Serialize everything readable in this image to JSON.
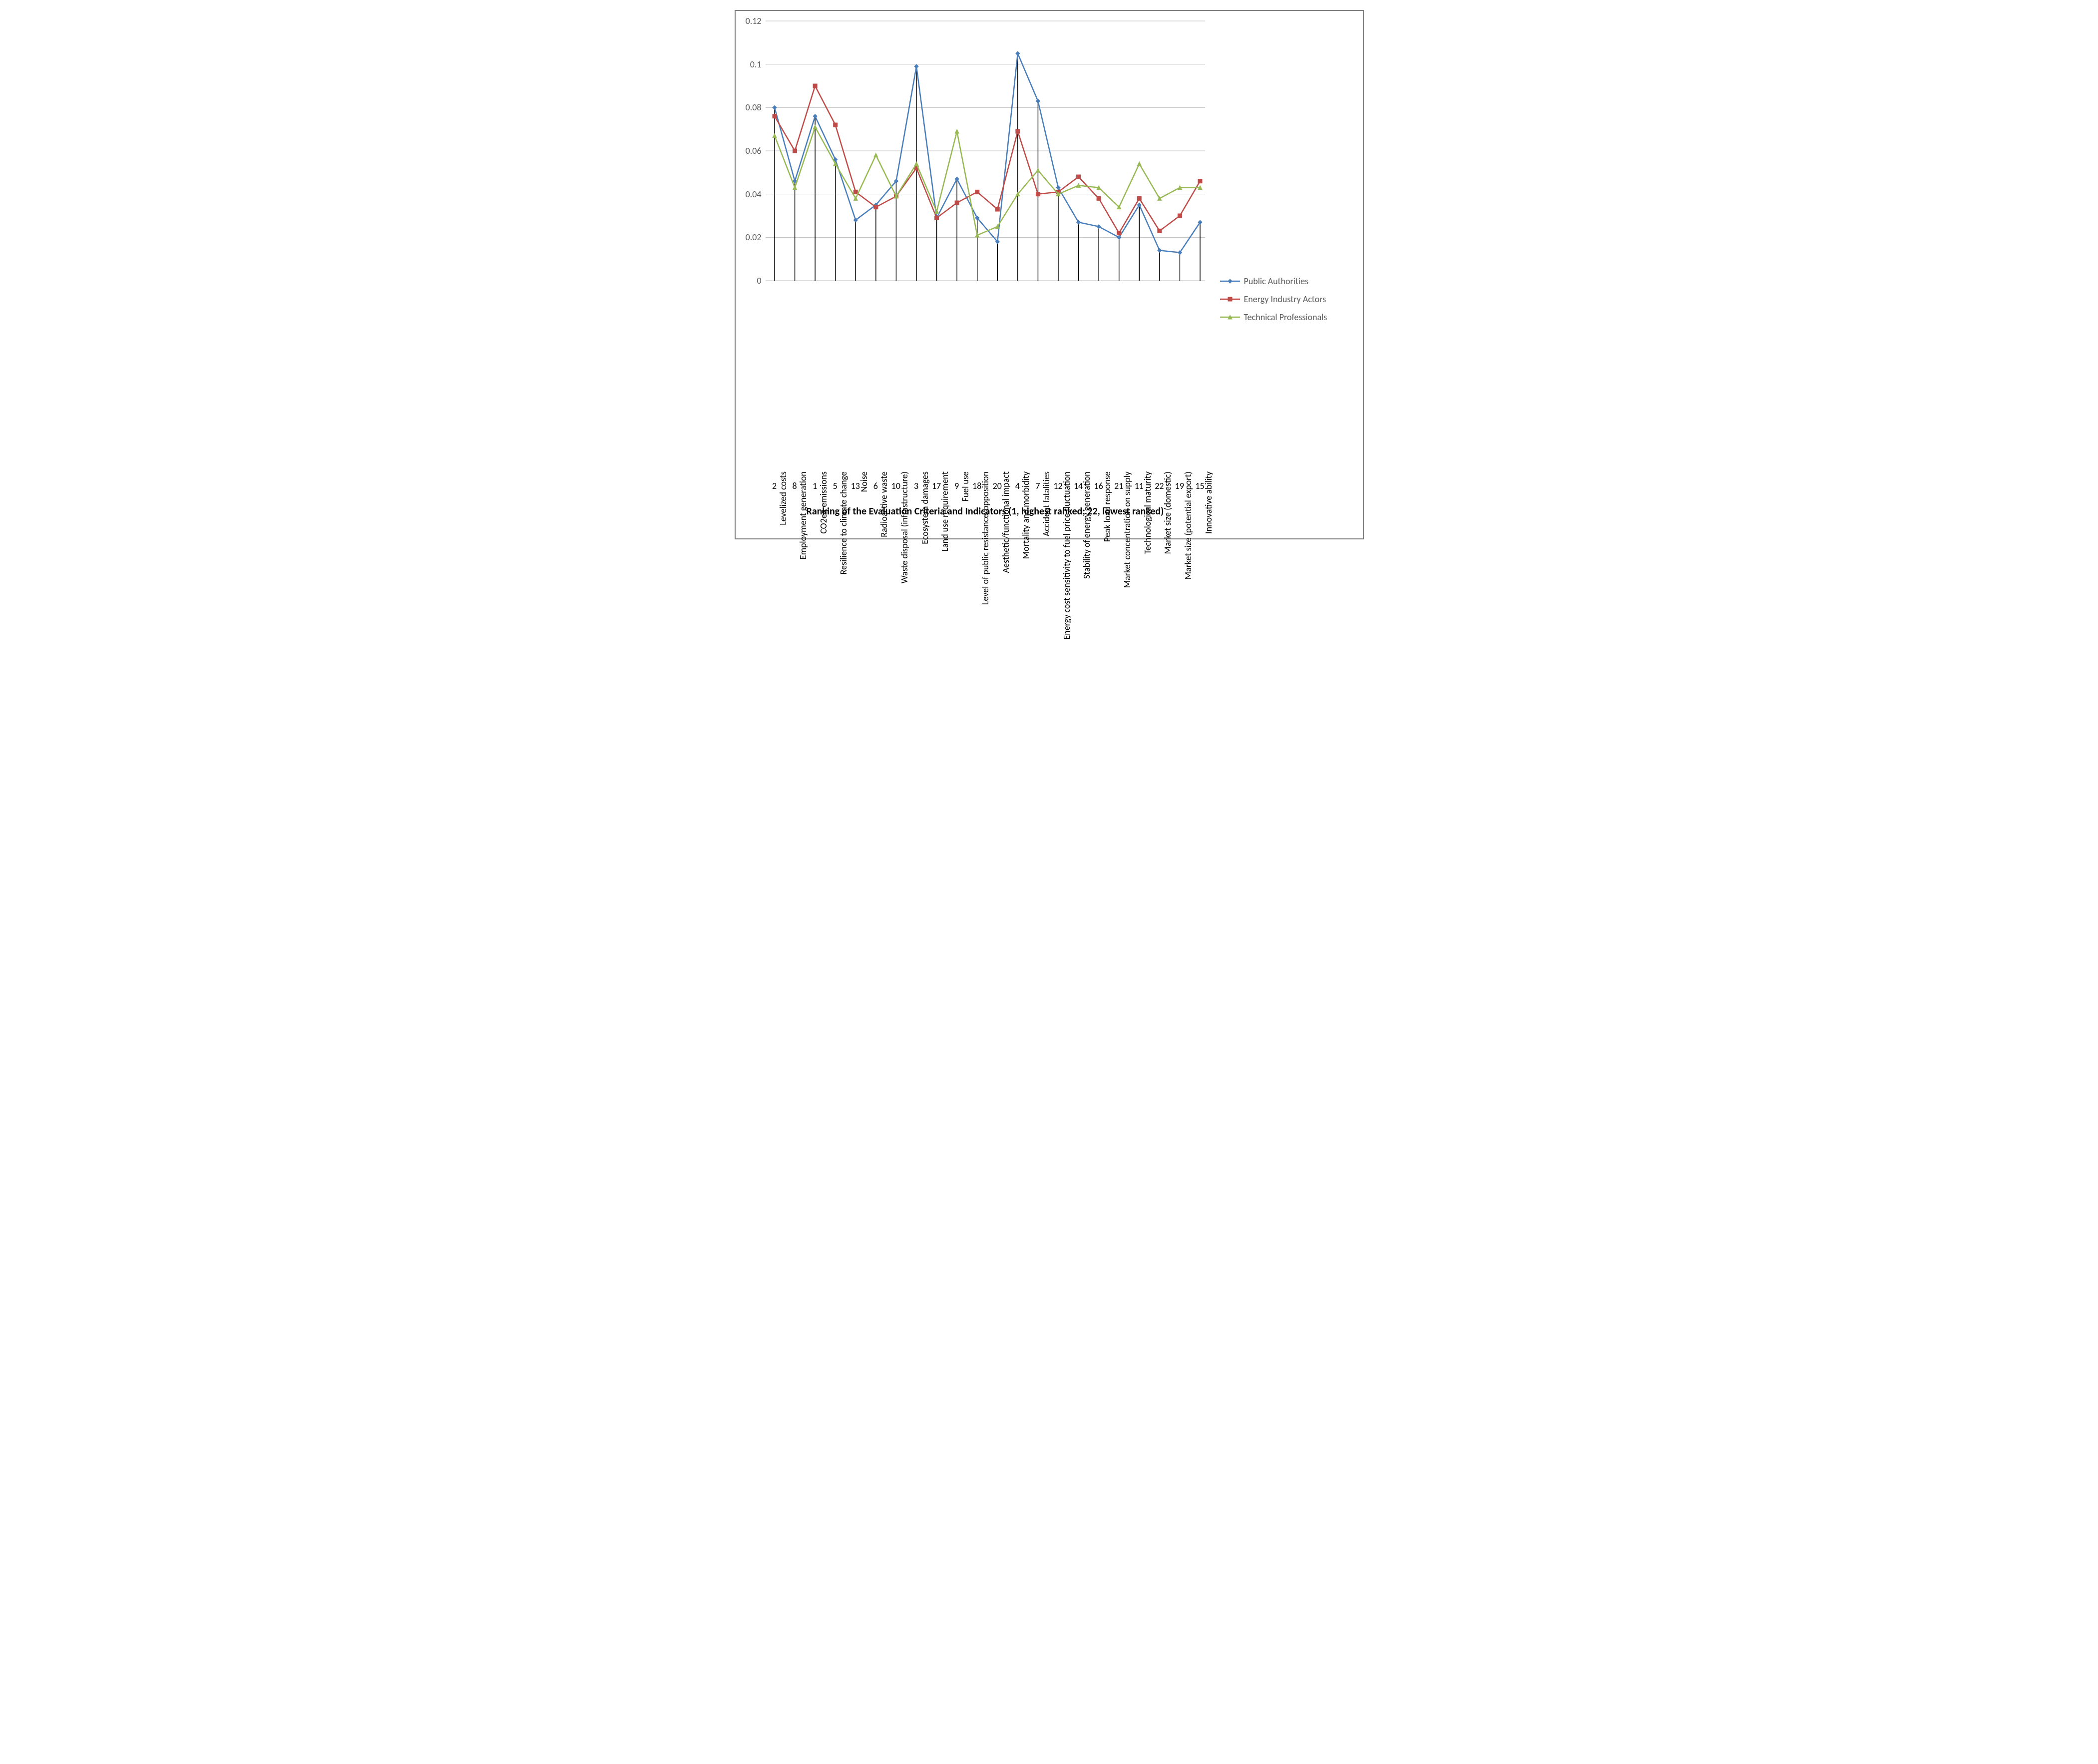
{
  "chart": {
    "type": "line",
    "background_color": "#ffffff",
    "border_color": "#7f7f7f",
    "grid_color": "#bfbfbf",
    "axis_text_color": "#595959",
    "x_axis_title": "Ranking of the Evaluation Criteria and Indicators (1, highest ranked; 22, lowest ranked)",
    "x_axis_title_fontsize": 20,
    "x_axis_title_fontweight": "bold",
    "label_fontsize": 18,
    "ylim": [
      0,
      0.12
    ],
    "ytick_step": 0.02,
    "yticks": [
      "0",
      "0.02",
      "0.04",
      "0.06",
      "0.08",
      "0.1",
      "0.12"
    ],
    "line_width": 2.5,
    "marker_size": 8,
    "dropline_color": "#000000",
    "categories": [
      "Levelized costs",
      "Employment generation",
      "CO2eq emissions",
      "Resilience to climate change",
      "Noise",
      "Radioactive waste",
      "Waste disposal (infrastructure)",
      "Ecosystem damages",
      "Land use requirement",
      "Fuel use",
      "Level of public resistance/opposition",
      "Aesthetic/functional impact",
      "Mortality and morbidity",
      "Accident fatalities",
      "Energy cost sensitivity to fuel price fluctuation",
      "Stability of energy generation",
      "Peak load response",
      "Market concentration on supply",
      "Technological maturity",
      "Market size (domestic)",
      "Market size (potential export)",
      "Innovative ability"
    ],
    "ranks": [
      2,
      8,
      1,
      5,
      13,
      6,
      10,
      3,
      17,
      9,
      18,
      20,
      4,
      7,
      12,
      14,
      16,
      21,
      11,
      22,
      19,
      15
    ],
    "series": [
      {
        "name": "Public Authorities",
        "color": "#4a7ebb",
        "marker": "diamond",
        "values": [
          0.08,
          0.046,
          0.076,
          0.056,
          0.028,
          0.035,
          0.046,
          0.099,
          0.029,
          0.047,
          0.029,
          0.018,
          0.105,
          0.083,
          0.043,
          0.027,
          0.025,
          0.02,
          0.035,
          0.014,
          0.013,
          0.027
        ]
      },
      {
        "name": "Energy Industry Actors",
        "color": "#be4b48",
        "marker": "square",
        "values": [
          0.076,
          0.06,
          0.09,
          0.072,
          0.041,
          0.034,
          0.039,
          0.052,
          0.029,
          0.036,
          0.041,
          0.033,
          0.069,
          0.04,
          0.041,
          0.048,
          0.038,
          0.022,
          0.038,
          0.023,
          0.03,
          0.046
        ]
      },
      {
        "name": "Technical Professionals",
        "color": "#98b954",
        "marker": "triangle",
        "values": [
          0.067,
          0.043,
          0.071,
          0.054,
          0.038,
          0.058,
          0.039,
          0.054,
          0.032,
          0.069,
          0.021,
          0.025,
          0.04,
          0.051,
          0.04,
          0.044,
          0.043,
          0.034,
          0.054,
          0.038,
          0.043,
          0.043
        ]
      }
    ],
    "legend_position": "right"
  }
}
